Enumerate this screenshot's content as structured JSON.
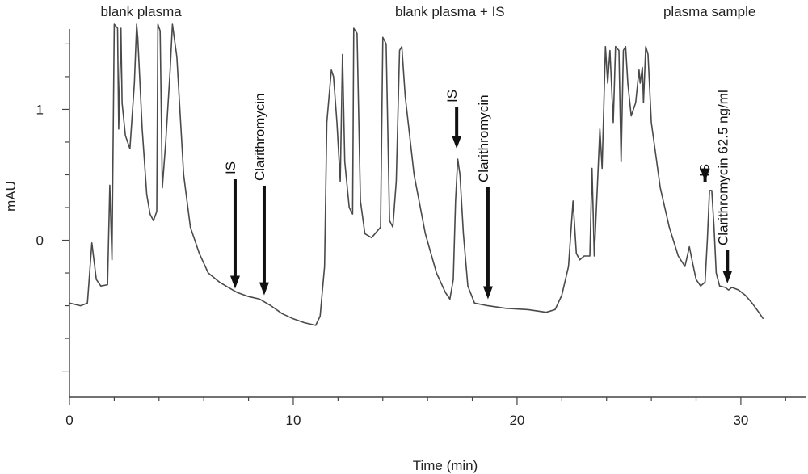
{
  "chart_data": {
    "type": "line",
    "xlabel": "Time (min)",
    "ylabel": "mAU",
    "xlim": [
      0,
      33
    ],
    "ylim": [
      -1.2,
      1.7
    ],
    "x_ticks": [
      0,
      10,
      20,
      30
    ],
    "y_ticks": [
      0,
      1
    ],
    "grid": false,
    "section_labels": [
      {
        "text": "blank plasma",
        "x": 3.2
      },
      {
        "text": "blank plasma + IS",
        "x": 17.0
      },
      {
        "text": "plasma sample",
        "x": 28.6
      }
    ],
    "annotations": [
      {
        "text": "IS",
        "x": 7.4,
        "y": -0.37
      },
      {
        "text": "Clarithromycin",
        "x": 8.7,
        "y": -0.42
      },
      {
        "text": "IS",
        "x": 17.3,
        "y": 0.7
      },
      {
        "text": "Clarithromycin",
        "x": 18.7,
        "y": -0.45
      },
      {
        "text": "IS",
        "x": 28.4,
        "y": 0.45
      },
      {
        "text": "Clarithromycin 62.5 ng/ml",
        "x": 29.4,
        "y": -0.33
      }
    ],
    "series": [
      {
        "values": [
          [
            0,
            -0.48
          ],
          [
            0.5,
            -0.5
          ],
          [
            0.8,
            -0.48
          ],
          [
            1.0,
            -0.02
          ],
          [
            1.2,
            -0.3
          ],
          [
            1.4,
            -0.35
          ],
          [
            1.7,
            -0.34
          ],
          [
            1.8,
            0.42
          ],
          [
            1.9,
            -0.15
          ],
          [
            2.0,
            1.65
          ],
          [
            2.15,
            1.62
          ],
          [
            2.2,
            0.85
          ],
          [
            2.3,
            1.62
          ],
          [
            2.35,
            1.05
          ],
          [
            2.5,
            0.8
          ],
          [
            2.7,
            0.7
          ],
          [
            2.9,
            1.2
          ],
          [
            3.0,
            1.65
          ],
          [
            3.05,
            1.55
          ],
          [
            3.25,
            0.85
          ],
          [
            3.45,
            0.35
          ],
          [
            3.6,
            0.2
          ],
          [
            3.75,
            0.15
          ],
          [
            3.9,
            0.22
          ],
          [
            3.95,
            1.65
          ],
          [
            4.05,
            1.6
          ],
          [
            4.15,
            0.4
          ],
          [
            4.3,
            0.75
          ],
          [
            4.5,
            1.3
          ],
          [
            4.6,
            1.65
          ],
          [
            4.8,
            1.4
          ],
          [
            5.1,
            0.5
          ],
          [
            5.4,
            0.1
          ],
          [
            5.8,
            -0.1
          ],
          [
            6.2,
            -0.25
          ],
          [
            6.7,
            -0.32
          ],
          [
            7.1,
            -0.36
          ],
          [
            7.5,
            -0.4
          ],
          [
            8.0,
            -0.43
          ],
          [
            8.5,
            -0.45
          ],
          [
            9.0,
            -0.5
          ],
          [
            9.5,
            -0.56
          ],
          [
            10.0,
            -0.6
          ],
          [
            10.5,
            -0.63
          ],
          [
            11.0,
            -0.65
          ],
          [
            11.2,
            -0.58
          ],
          [
            11.4,
            -0.2
          ],
          [
            11.5,
            0.9
          ],
          [
            11.7,
            1.3
          ],
          [
            11.8,
            1.25
          ],
          [
            11.95,
            0.9
          ],
          [
            12.1,
            0.45
          ],
          [
            12.2,
            1.42
          ],
          [
            12.3,
            0.6
          ],
          [
            12.5,
            0.25
          ],
          [
            12.65,
            0.2
          ],
          [
            12.7,
            1.62
          ],
          [
            12.85,
            1.58
          ],
          [
            13.0,
            0.3
          ],
          [
            13.2,
            0.05
          ],
          [
            13.5,
            0.02
          ],
          [
            13.9,
            0.1
          ],
          [
            14.0,
            1.55
          ],
          [
            14.15,
            1.5
          ],
          [
            14.3,
            0.15
          ],
          [
            14.45,
            0.1
          ],
          [
            14.6,
            0.45
          ],
          [
            14.75,
            1.45
          ],
          [
            14.85,
            1.48
          ],
          [
            15.0,
            1.1
          ],
          [
            15.4,
            0.5
          ],
          [
            15.9,
            0.05
          ],
          [
            16.4,
            -0.25
          ],
          [
            16.8,
            -0.4
          ],
          [
            17.0,
            -0.45
          ],
          [
            17.15,
            -0.3
          ],
          [
            17.25,
            0.3
          ],
          [
            17.35,
            0.62
          ],
          [
            17.45,
            0.5
          ],
          [
            17.6,
            0.05
          ],
          [
            17.8,
            -0.35
          ],
          [
            18.1,
            -0.48
          ],
          [
            18.7,
            -0.5
          ],
          [
            19.5,
            -0.52
          ],
          [
            20.5,
            -0.53
          ],
          [
            21.3,
            -0.55
          ],
          [
            21.7,
            -0.53
          ],
          [
            22.0,
            -0.42
          ],
          [
            22.3,
            -0.2
          ],
          [
            22.5,
            0.3
          ],
          [
            22.65,
            -0.1
          ],
          [
            22.8,
            -0.15
          ],
          [
            23.0,
            -0.12
          ],
          [
            23.25,
            -0.12
          ],
          [
            23.35,
            0.55
          ],
          [
            23.45,
            -0.12
          ],
          [
            23.6,
            0.45
          ],
          [
            23.7,
            0.85
          ],
          [
            23.8,
            0.55
          ],
          [
            23.95,
            1.48
          ],
          [
            24.05,
            1.2
          ],
          [
            24.15,
            1.45
          ],
          [
            24.3,
            0.9
          ],
          [
            24.4,
            1.48
          ],
          [
            24.55,
            1.45
          ],
          [
            24.65,
            0.6
          ],
          [
            24.75,
            1.45
          ],
          [
            24.85,
            1.48
          ],
          [
            24.95,
            1.2
          ],
          [
            25.1,
            0.95
          ],
          [
            25.3,
            1.05
          ],
          [
            25.45,
            1.3
          ],
          [
            25.5,
            1.2
          ],
          [
            25.6,
            1.32
          ],
          [
            25.65,
            1.05
          ],
          [
            25.75,
            1.48
          ],
          [
            25.85,
            1.42
          ],
          [
            26.0,
            0.9
          ],
          [
            26.4,
            0.4
          ],
          [
            26.8,
            0.1
          ],
          [
            27.2,
            -0.12
          ],
          [
            27.5,
            -0.2
          ],
          [
            27.7,
            -0.05
          ],
          [
            27.85,
            -0.18
          ],
          [
            28.0,
            -0.3
          ],
          [
            28.2,
            -0.35
          ],
          [
            28.4,
            -0.32
          ],
          [
            28.5,
            0.0
          ],
          [
            28.6,
            0.38
          ],
          [
            28.7,
            0.38
          ],
          [
            28.8,
            0.1
          ],
          [
            28.9,
            -0.25
          ],
          [
            29.05,
            -0.35
          ],
          [
            29.3,
            -0.36
          ],
          [
            29.45,
            -0.38
          ],
          [
            29.6,
            -0.36
          ],
          [
            29.9,
            -0.38
          ],
          [
            30.2,
            -0.42
          ],
          [
            30.5,
            -0.48
          ],
          [
            30.8,
            -0.55
          ],
          [
            31.0,
            -0.6
          ]
        ]
      }
    ]
  }
}
